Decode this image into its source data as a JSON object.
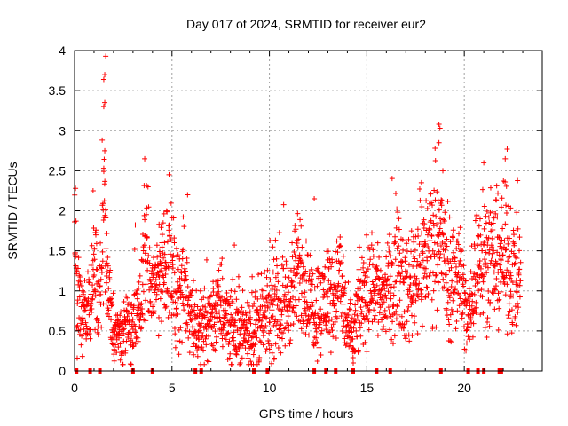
{
  "chart_data": {
    "type": "scatter",
    "title": "Day 017 of 2024, SRMTID for receiver eur2",
    "xlabel": "GPS time / hours",
    "ylabel": "SRMTID / TECUs",
    "xlim": [
      0,
      24
    ],
    "ylim": [
      0,
      4
    ],
    "grid": true,
    "legend": "none",
    "marker": "+",
    "color": "#ff0000",
    "x_ticks": [
      0,
      5,
      10,
      15,
      20
    ],
    "x_tick_labels": [
      "0",
      "5",
      "10",
      "15",
      "20"
    ],
    "y_ticks": [
      0,
      0.5,
      1,
      1.5,
      2,
      2.5,
      3,
      3.5,
      4
    ],
    "y_tick_labels": [
      "0",
      "0.5",
      "1",
      "1.5",
      "2",
      "2.5",
      "3",
      "3.5",
      "4"
    ],
    "series": [
      {
        "name": "SRMTID",
        "envelope_x": [
          0.0,
          0.1,
          0.3,
          0.5,
          0.8,
          1.0,
          1.2,
          1.4,
          1.5,
          1.7,
          2.0,
          2.3,
          2.6,
          3.0,
          3.4,
          3.6,
          3.9,
          4.2,
          4.5,
          4.8,
          5.0,
          5.3,
          5.6,
          5.9,
          6.2,
          6.5,
          7.0,
          7.5,
          8.0,
          8.5,
          9.0,
          9.5,
          10.0,
          10.5,
          11.0,
          11.3,
          11.6,
          12.0,
          12.3,
          12.7,
          13.0,
          13.3,
          13.6,
          14.0,
          14.3,
          14.6,
          15.0,
          15.4,
          15.8,
          16.2,
          16.6,
          17.0,
          17.4,
          17.8,
          18.2,
          18.6,
          18.9,
          19.2,
          19.5,
          19.8,
          20.0,
          20.2,
          20.4,
          20.6,
          20.9,
          21.2,
          21.5,
          21.8,
          22.1,
          22.4,
          22.7,
          22.9
        ],
        "envelope_y": [
          1.9,
          1.0,
          0.7,
          0.7,
          0.9,
          1.3,
          1.0,
          1.3,
          2.0,
          1.0,
          0.5,
          0.5,
          0.5,
          0.6,
          0.7,
          1.7,
          1.0,
          1.1,
          1.3,
          1.5,
          1.2,
          0.9,
          1.1,
          0.8,
          0.6,
          0.5,
          0.7,
          0.8,
          0.6,
          0.5,
          0.5,
          0.6,
          0.7,
          0.8,
          0.9,
          1.1,
          1.3,
          0.9,
          0.8,
          0.8,
          1.0,
          0.9,
          1.2,
          0.5,
          0.4,
          0.8,
          1.0,
          1.1,
          0.9,
          1.0,
          1.4,
          0.9,
          1.2,
          1.4,
          1.5,
          1.8,
          1.5,
          1.0,
          1.2,
          1.3,
          0.8,
          0.6,
          0.9,
          1.3,
          1.6,
          1.4,
          1.3,
          1.5,
          1.4,
          1.3,
          1.2,
          1.1
        ],
        "notable_points": [
          {
            "x": 1.6,
            "y": 3.93
          },
          {
            "x": 1.55,
            "y": 3.7
          },
          {
            "x": 1.5,
            "y": 3.64
          },
          {
            "x": 1.55,
            "y": 3.35
          },
          {
            "x": 1.5,
            "y": 3.3
          },
          {
            "x": 1.55,
            "y": 2.75
          },
          {
            "x": 1.5,
            "y": 2.53
          },
          {
            "x": 3.6,
            "y": 2.65
          },
          {
            "x": 4.85,
            "y": 2.45
          },
          {
            "x": 5.8,
            "y": 2.2
          },
          {
            "x": 12.3,
            "y": 2.15
          },
          {
            "x": 18.7,
            "y": 3.08
          },
          {
            "x": 18.75,
            "y": 3.03
          },
          {
            "x": 18.7,
            "y": 2.85
          },
          {
            "x": 18.9,
            "y": 2.5
          },
          {
            "x": 17.8,
            "y": 2.35
          },
          {
            "x": 22.2,
            "y": 2.77
          },
          {
            "x": 22.1,
            "y": 2.65
          },
          {
            "x": 21.0,
            "y": 2.6
          },
          {
            "x": 0.05,
            "y": 2.28
          },
          {
            "x": 0.95,
            "y": 2.25
          },
          {
            "x": 14.3,
            "y": 0.1
          }
        ]
      }
    ],
    "baseline_marks_x": [
      0.1,
      0.8,
      1.3,
      3.0,
      4.0,
      6.2,
      6.5,
      9.2,
      9.9,
      12.3,
      12.9,
      13.4,
      14.3,
      15.5,
      16.2,
      18.8,
      20.2,
      20.7,
      21.0,
      21.8,
      21.9
    ]
  }
}
